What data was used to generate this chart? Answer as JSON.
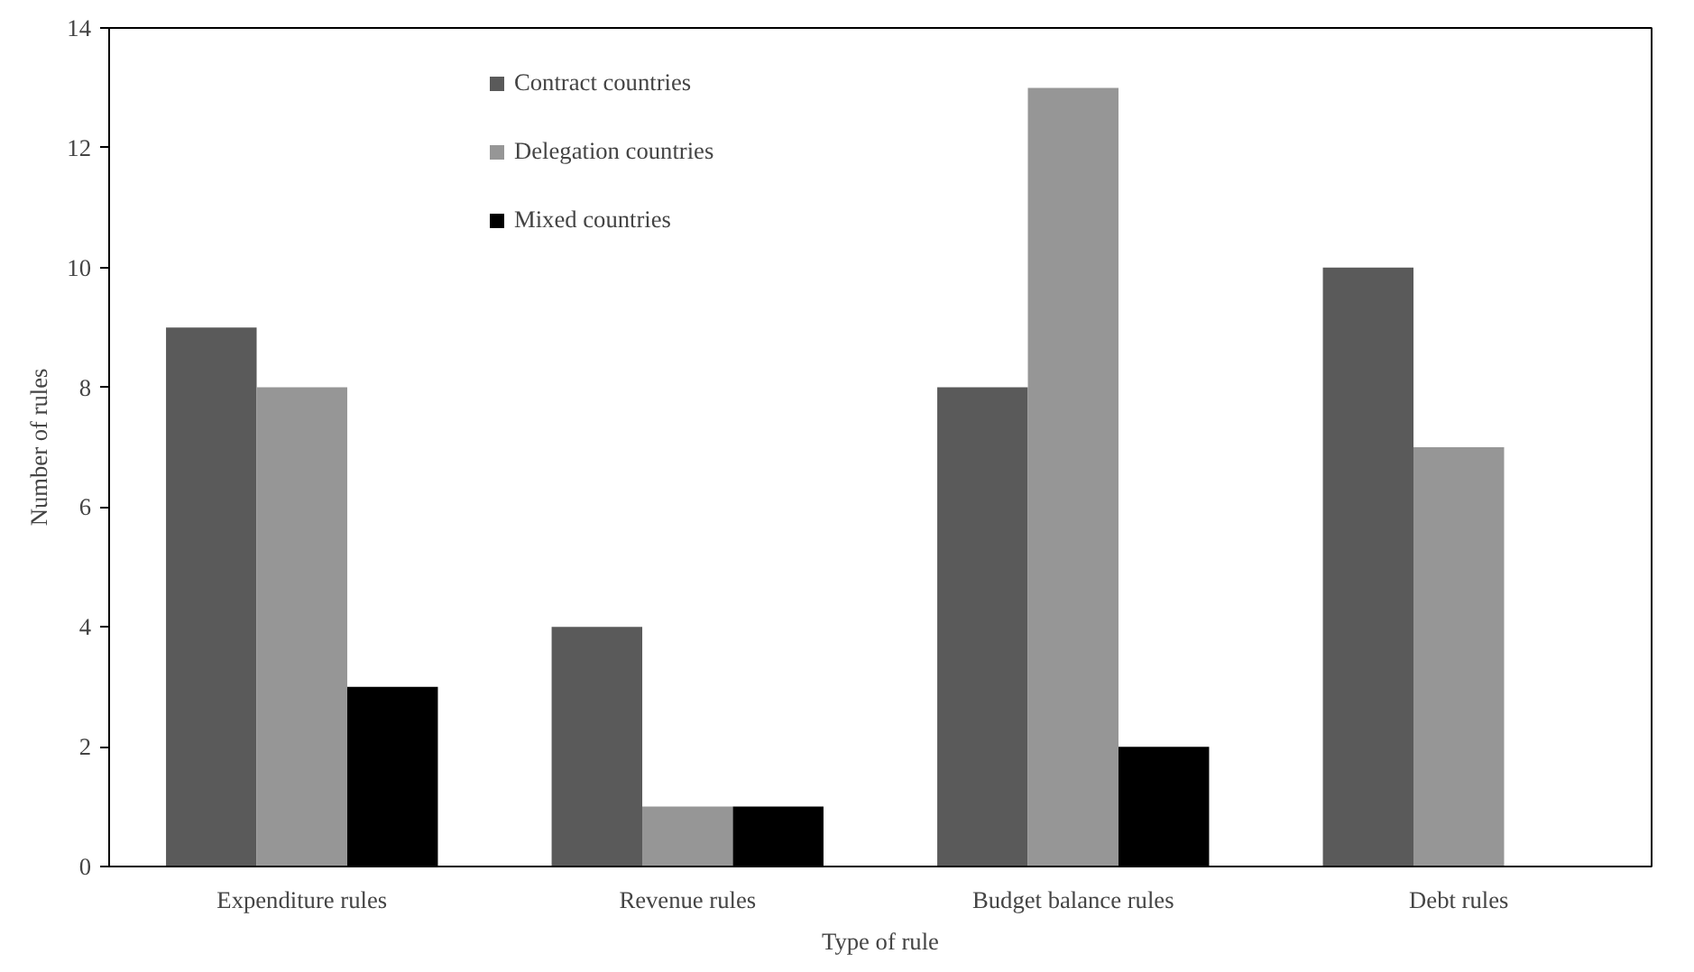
{
  "chart_data": {
    "type": "bar",
    "xlabel": "Type of rule",
    "ylabel": "Number of rules",
    "categories": [
      "Expenditure rules",
      "Revenue rules",
      "Budget balance rules",
      "Debt rules"
    ],
    "series": [
      {
        "name": "Contract countries",
        "color": "#5a5a5a",
        "values": [
          9,
          4,
          8,
          10
        ]
      },
      {
        "name": "Delegation countries",
        "color": "#969696",
        "values": [
          8,
          1,
          13,
          7
        ]
      },
      {
        "name": "Mixed countries",
        "color": "#000000",
        "values": [
          3,
          1,
          2,
          0
        ]
      }
    ],
    "ylim": [
      0,
      14
    ],
    "yticks": [
      0,
      2,
      4,
      6,
      8,
      10,
      12,
      14
    ],
    "grid": false,
    "legend": "top"
  }
}
